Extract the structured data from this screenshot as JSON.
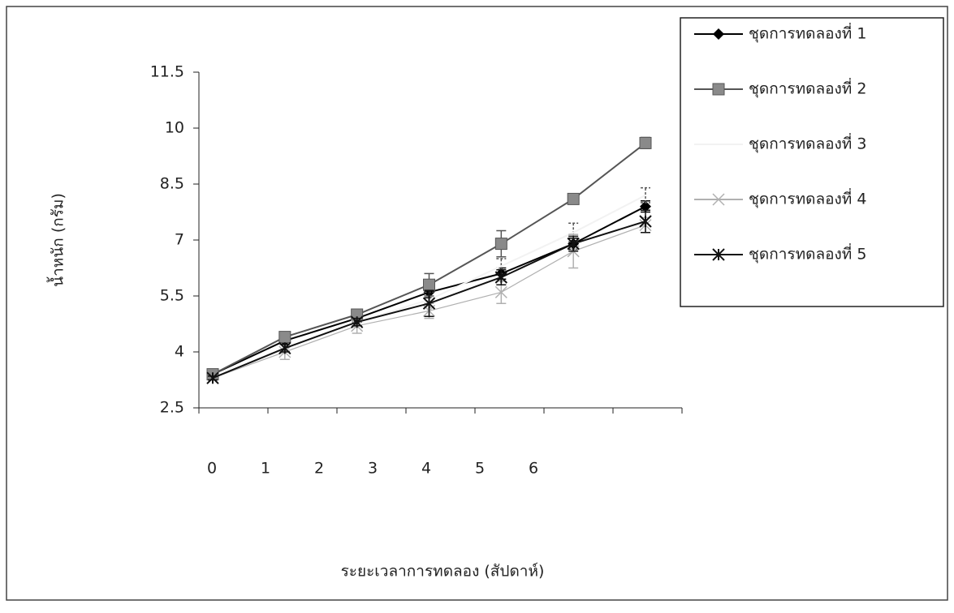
{
  "chart_data": {
    "type": "line",
    "y_label": "น้ำหนัก (กรัม)",
    "x_label": "ระยะเวลาการทดลอง (สัปดาห์)",
    "categories": [
      "0",
      "1",
      "2",
      "3",
      "4",
      "5",
      "6"
    ],
    "ylim": [
      2.5,
      11.5
    ],
    "yticks": [
      2.5,
      4,
      5.5,
      7,
      8.5,
      10,
      11.5
    ],
    "series": [
      {
        "name": "ชุดการทดลองที่  1",
        "color": "#000000",
        "marker": "diamond",
        "values": [
          3.4,
          4.3,
          4.9,
          5.6,
          6.1,
          6.9,
          7.9
        ],
        "errors": [
          0.05,
          0.1,
          0.1,
          0.15,
          0.15,
          0.15,
          0.15
        ]
      },
      {
        "name": "ชุดการทดลองที่  2",
        "color": "#555555",
        "marker": "square",
        "values": [
          3.4,
          4.4,
          5.0,
          5.8,
          6.9,
          8.1,
          9.6
        ],
        "errors": [
          0.05,
          0.1,
          0.1,
          0.3,
          0.35,
          0.1,
          0.15
        ]
      },
      {
        "name": "ชุดการทดลองที่  3",
        "color": "#f2f2f2",
        "marker": "none",
        "values": [
          3.3,
          4.1,
          4.8,
          5.4,
          6.3,
          7.2,
          8.2
        ],
        "errors": [
          0.05,
          0.1,
          0.1,
          0.2,
          0.2,
          0.25,
          0.2
        ]
      },
      {
        "name": "ชุดการทดลองที่  4",
        "color": "#b0b0b0",
        "marker": "x",
        "values": [
          3.3,
          4.0,
          4.7,
          5.1,
          5.6,
          6.7,
          7.4
        ],
        "errors": [
          0.05,
          0.2,
          0.2,
          0.2,
          0.3,
          0.45,
          0.2
        ]
      },
      {
        "name": "ชุดการทดลองที่  5",
        "color": "#111111",
        "marker": "asterisk",
        "values": [
          3.3,
          4.1,
          4.8,
          5.3,
          6.0,
          6.9,
          7.5
        ],
        "errors": [
          0.05,
          0.1,
          0.1,
          0.35,
          0.2,
          0.2,
          0.3
        ]
      }
    ]
  }
}
